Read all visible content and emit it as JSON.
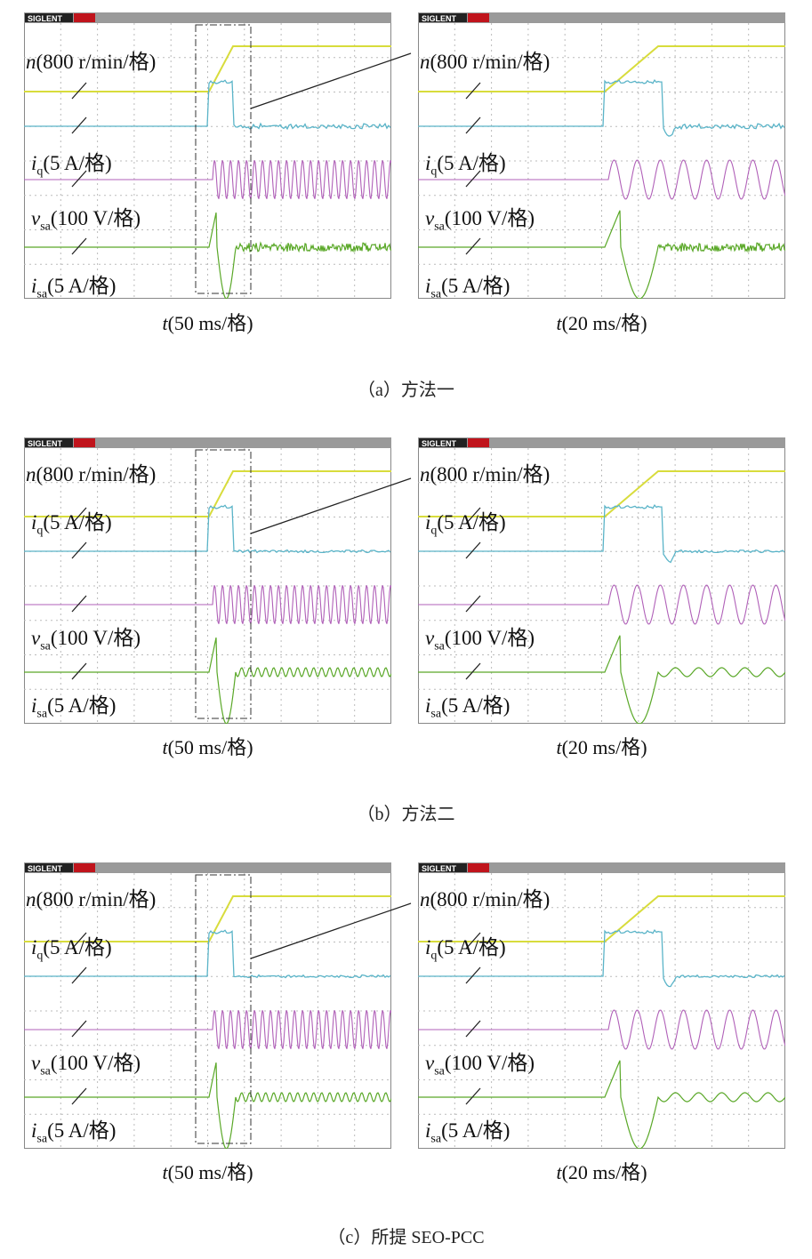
{
  "logo": "SIGLENT",
  "trace_labels": {
    "n_sym": "n",
    "n_unit": "(800 r/min/格)",
    "iq_sym": "i",
    "iq_sub": "q",
    "iq_unit": "(5 A/格)",
    "vsa_sym": "v",
    "vsa_sub": "sa",
    "vsa_unit": "(100 V/格)",
    "isa_sym": "i",
    "isa_sub": "sa",
    "isa_unit": "(5 A/格)"
  },
  "time_labels": {
    "sym": "t",
    "left": "(50 ms/格)",
    "right": "(20 ms/格)"
  },
  "captions": [
    "（a）方法一",
    "（b）方法二",
    "（c）所提 SEO-PCC"
  ],
  "colors": {
    "speed": "#d8dc3c",
    "iq": "#5ab4c8",
    "vsa": "#b060b8",
    "isa": "#5aa828"
  }
}
